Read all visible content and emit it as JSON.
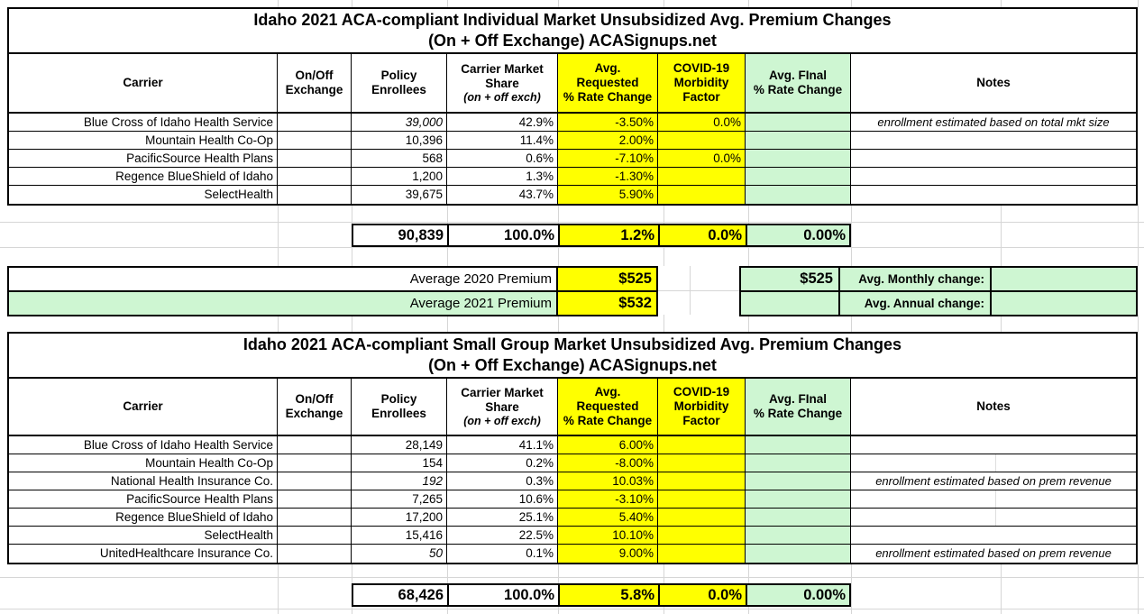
{
  "colors": {
    "highlight_yellow": "#ffff00",
    "highlight_green": "#cef6d2",
    "border_black": "#000000",
    "gridline_gray": "#d6d6d6"
  },
  "tables": [
    {
      "title_line1": "Idaho 2021 ACA-compliant Individual Market Unsubsidized Avg. Premium Changes",
      "title_line2": "(On + Off Exchange) ACASignups.net",
      "headers": {
        "carrier": "Carrier",
        "exchange": "On/Off\nExchange",
        "enrollees": "Policy\nEnrollees",
        "share_main": "Carrier Market\nShare",
        "share_sub": "(on + off exch)",
        "requested": "Avg.\nRequested\n% Rate Change",
        "covid": "COVID-19\nMorbidity\nFactor",
        "final": "Avg. FInal\n% Rate Change",
        "notes": "Notes"
      },
      "rows": [
        {
          "carrier": "Blue Cross of Idaho Health Service",
          "exchange": "",
          "enrollees": "39,000",
          "enrollees_italic": true,
          "share": "42.9%",
          "requested": "-3.50%",
          "covid": "0.0%",
          "final": "",
          "notes": "enrollment estimated based on total mkt size"
        },
        {
          "carrier": "Mountain Health Co-Op",
          "exchange": "",
          "enrollees": "10,396",
          "enrollees_italic": false,
          "share": "11.4%",
          "requested": "2.00%",
          "covid": "",
          "final": "",
          "notes": ""
        },
        {
          "carrier": "PacificSource Health Plans",
          "exchange": "",
          "enrollees": "568",
          "enrollees_italic": false,
          "share": "0.6%",
          "requested": "-7.10%",
          "covid": "0.0%",
          "final": "",
          "notes": ""
        },
        {
          "carrier": "Regence BlueShield of Idaho",
          "exchange": "",
          "enrollees": "1,200",
          "enrollees_italic": false,
          "share": "1.3%",
          "requested": "-1.30%",
          "covid": "",
          "final": "",
          "notes": ""
        },
        {
          "carrier": "SelectHealth",
          "exchange": "",
          "enrollees": "39,675",
          "enrollees_italic": false,
          "share": "43.7%",
          "requested": "5.90%",
          "covid": "",
          "final": "",
          "notes": ""
        }
      ],
      "totals": {
        "enrollees": "90,839",
        "share": "100.0%",
        "requested": "1.2%",
        "covid": "0.0%",
        "final": "0.00%"
      }
    },
    {
      "title_line1": "Idaho 2021 ACA-compliant Small Group Market Unsubsidized Avg. Premium Changes",
      "title_line2": "(On + Off Exchange) ACASignups.net",
      "headers": {
        "carrier": "Carrier",
        "exchange": "On/Off\nExchange",
        "enrollees": "Policy\nEnrollees",
        "share_main": "Carrier Market\nShare",
        "share_sub": "(on + off exch)",
        "requested": "Avg.\nRequested\n% Rate Change",
        "covid": "COVID-19\nMorbidity\nFactor",
        "final": "Avg. FInal\n% Rate Change",
        "notes": "Notes"
      },
      "rows": [
        {
          "carrier": "Blue Cross of Idaho Health Service",
          "exchange": "",
          "enrollees": "28,149",
          "enrollees_italic": false,
          "share": "41.1%",
          "requested": "6.00%",
          "covid": "",
          "final": "",
          "notes": ""
        },
        {
          "carrier": "Mountain Health Co-Op",
          "exchange": "",
          "enrollees": "154",
          "enrollees_italic": false,
          "share": "0.2%",
          "requested": "-8.00%",
          "covid": "",
          "final": "",
          "notes": ""
        },
        {
          "carrier": "National Health Insurance Co.",
          "exchange": "",
          "enrollees": "192",
          "enrollees_italic": true,
          "share": "0.3%",
          "requested": "10.03%",
          "covid": "",
          "final": "",
          "notes": "enrollment estimated based on prem revenue"
        },
        {
          "carrier": "PacificSource Health Plans",
          "exchange": "",
          "enrollees": "7,265",
          "enrollees_italic": false,
          "share": "10.6%",
          "requested": "-3.10%",
          "covid": "",
          "final": "",
          "notes": ""
        },
        {
          "carrier": "Regence BlueShield of Idaho",
          "exchange": "",
          "enrollees": "17,200",
          "enrollees_italic": false,
          "share": "25.1%",
          "requested": "5.40%",
          "covid": "",
          "final": "",
          "notes": ""
        },
        {
          "carrier": "SelectHealth",
          "exchange": "",
          "enrollees": "15,416",
          "enrollees_italic": false,
          "share": "22.5%",
          "requested": "10.10%",
          "covid": "",
          "final": "",
          "notes": ""
        },
        {
          "carrier": "UnitedHealthcare Insurance Co.",
          "exchange": "",
          "enrollees": "50",
          "enrollees_italic": true,
          "share": "0.1%",
          "requested": "9.00%",
          "covid": "",
          "final": "",
          "notes": "enrollment estimated based on prem revenue"
        }
      ],
      "totals": {
        "enrollees": "68,426",
        "share": "100.0%",
        "requested": "5.8%",
        "covid": "0.0%",
        "final": "0.00%"
      }
    }
  ],
  "premium_summary": {
    "rows": [
      {
        "label": "Average 2020 Premium",
        "value": "$525",
        "right_value": "$525",
        "right_label": "Avg. Monthly change:",
        "right_result": ""
      },
      {
        "label": "Average 2021 Premium",
        "value": "$532",
        "right_value": "",
        "right_label": "Avg. Annual change:",
        "right_result": ""
      }
    ]
  }
}
